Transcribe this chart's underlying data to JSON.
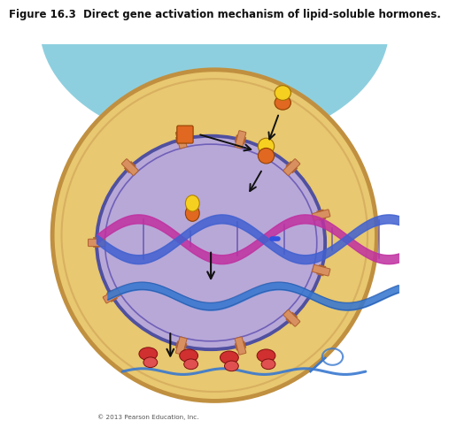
{
  "title": "Figure 16.3  Direct gene activation mechanism of lipid-soluble hormones.",
  "title_fontsize": 8.5,
  "fig_bg": "#ffffff",
  "copyright": "© 2013 Pearson Education, Inc.",
  "bg_top_color": "#8ecfdf",
  "bg_cell_color": "#e8c870",
  "nucleus_color": "#b8a8d8",
  "nucleus_edge_outer": "#5050a0",
  "nucleus_edge_inner": "#7060b8",
  "cell_edge_outer": "#c09040",
  "cell_edge_inner": "#d8b060",
  "hormone_yellow": "#f5d020",
  "hormone_orange": "#e06820",
  "dna_pink": "#c030a0",
  "dna_blue": "#4060d0",
  "mrna_blue": "#3878d0",
  "ribosome_red": "#d03030",
  "ribosome_light": "#e05050",
  "arrow_color": "#111111",
  "pore_color": "#d89060",
  "pore_inner": "#b06030"
}
